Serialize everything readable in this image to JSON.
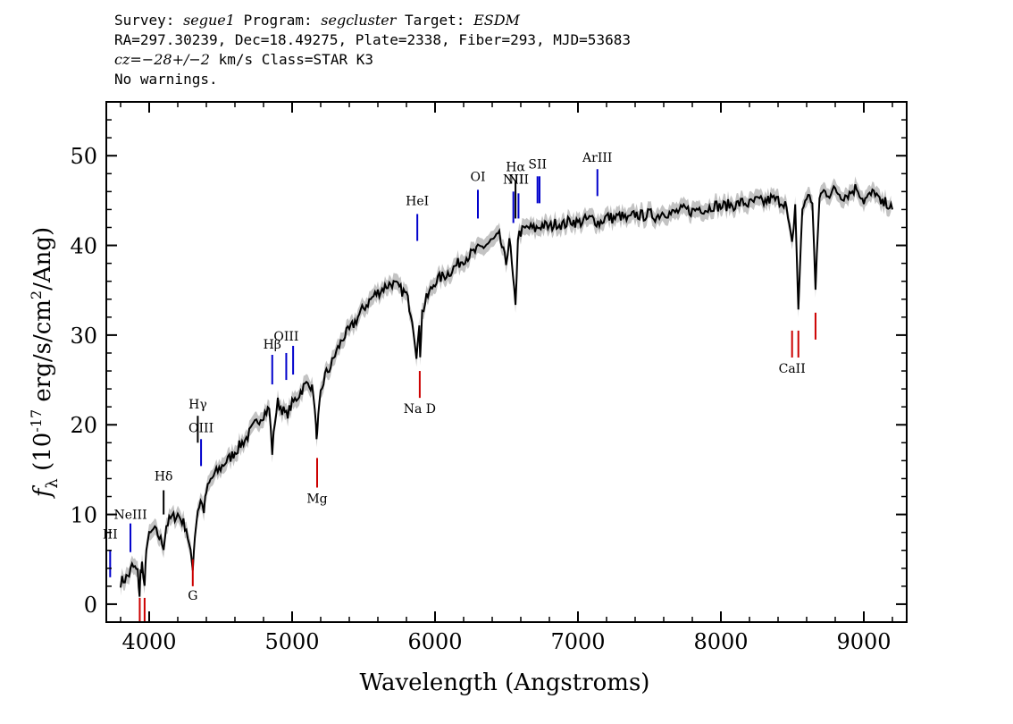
{
  "header": {
    "survey_label": "Survey:",
    "survey": "segue1",
    "program_label": "Program:",
    "program": "segcluster",
    "target_label": "Target:",
    "target": "ESDM",
    "line2": "RA=297.30239, Dec=18.49275, Plate=2338, Fiber=293, MJD=53683",
    "cz_label": "cz=",
    "cz_value": "−28+/−2",
    "cz_unit": " km/s Class=STAR K3",
    "warnings": "No warnings."
  },
  "chart_data": {
    "type": "line",
    "xlabel": "Wavelength (Angstroms)",
    "ylabel": "f_λ (10^-17 erg/s/cm^2/Ang)",
    "xlim": [
      3700,
      9300
    ],
    "ylim": [
      -2,
      56
    ],
    "xticks": [
      4000,
      5000,
      6000,
      7000,
      8000,
      9000
    ],
    "yticks": [
      0,
      10,
      20,
      30,
      40,
      50
    ],
    "xtick_labels": [
      "4000",
      "5000",
      "6000",
      "7000",
      "8000",
      "9000"
    ],
    "ytick_labels": [
      "0",
      "10",
      "20",
      "30",
      "40",
      "50"
    ],
    "colors": {
      "spectrum": "#000000",
      "error": "#b4b4b4",
      "emission": "#0000cc",
      "absorption": "#cc0000",
      "balmer": "#000000"
    },
    "series": [
      {
        "x": [
          3800,
          3830,
          3860,
          3880,
          3900,
          3920,
          3933,
          3940,
          3950,
          3968,
          3980,
          4000,
          4030,
          4060,
          4101,
          4120,
          4150,
          4200,
          4230,
          4260,
          4290,
          4305,
          4320,
          4340,
          4360,
          4383,
          4400,
          4430,
          4460,
          4500,
          4530,
          4560,
          4600,
          4640,
          4680,
          4720,
          4760,
          4800,
          4840,
          4861,
          4880,
          4900,
          4920,
          4960,
          5000,
          5040,
          5080,
          5120,
          5150,
          5167,
          5175,
          5183,
          5200,
          5230,
          5270,
          5300,
          5330,
          5360,
          5400,
          5430,
          5460,
          5500,
          5540,
          5580,
          5620,
          5660,
          5700,
          5750,
          5800,
          5840,
          5870,
          5890,
          5896,
          5910,
          5940,
          5970,
          6000,
          6050,
          6100,
          6150,
          6200,
          6250,
          6300,
          6350,
          6400,
          6450,
          6497,
          6520,
          6563,
          6580,
          6600,
          6650,
          6700,
          6750,
          6800,
          6850,
          6900,
          6950,
          7000,
          7050,
          7100,
          7150,
          7200,
          7250,
          7300,
          7350,
          7400,
          7450,
          7500,
          7550,
          7600,
          7650,
          7700,
          7750,
          7800,
          7850,
          7900,
          7950,
          8000,
          8050,
          8100,
          8150,
          8200,
          8250,
          8300,
          8350,
          8400,
          8450,
          8498,
          8520,
          8542,
          8570,
          8600,
          8640,
          8662,
          8690,
          8720,
          8760,
          8800,
          8850,
          8900,
          8950,
          9000,
          9040,
          9080,
          9120,
          9160,
          9200
        ],
        "y": [
          2.5,
          2.8,
          3.3,
          4.2,
          4.0,
          3.5,
          1.0,
          3.6,
          4.5,
          1.5,
          6.5,
          7.5,
          8.3,
          7.8,
          6.5,
          8.8,
          9.5,
          10.0,
          9.3,
          8.5,
          5.5,
          4.2,
          7.8,
          10.5,
          11.5,
          10.5,
          12.5,
          13.8,
          14.5,
          15.2,
          15.8,
          16.2,
          17.0,
          17.8,
          18.5,
          19.5,
          20.5,
          21.2,
          21.8,
          17.0,
          20.5,
          22.5,
          22.0,
          21.0,
          22.3,
          23.2,
          24.2,
          24.8,
          23.5,
          19.5,
          18.5,
          20.5,
          23.5,
          25.5,
          26.5,
          27.8,
          28.8,
          29.8,
          30.5,
          31.2,
          32.0,
          33.0,
          33.8,
          34.5,
          35.0,
          35.5,
          35.8,
          35.2,
          34.5,
          32.0,
          28.0,
          30.5,
          28.0,
          32.5,
          34.0,
          35.0,
          36.0,
          36.5,
          37.0,
          37.8,
          38.5,
          39.0,
          39.5,
          40.0,
          40.5,
          41.0,
          38.0,
          41.0,
          33.0,
          41.0,
          41.5,
          42.0,
          41.8,
          42.3,
          42.0,
          42.5,
          42.3,
          42.8,
          42.5,
          42.8,
          43.0,
          42.5,
          43.2,
          43.0,
          43.3,
          42.8,
          43.5,
          43.3,
          43.5,
          43.2,
          43.8,
          43.5,
          43.8,
          44.0,
          43.8,
          44.2,
          44.0,
          44.5,
          44.3,
          44.5,
          44.5,
          44.8,
          44.6,
          45.0,
          44.8,
          45.2,
          45.0,
          44.8,
          40.0,
          44.5,
          33.0,
          44.0,
          45.5,
          45.0,
          35.0,
          45.5,
          46.0,
          45.8,
          46.2,
          45.5,
          45.8,
          46.5,
          45.0,
          45.5,
          46.0,
          44.5,
          44.8,
          44.0
        ]
      }
    ],
    "line_markers": [
      {
        "label": "III",
        "x": 3727,
        "y0": 3.0,
        "y1": 6.0,
        "color": "blue",
        "label_y": 7.3
      },
      {
        "label": "NeIII",
        "x": 3869,
        "y0": 5.8,
        "y1": 9.0,
        "color": "blue",
        "label_y": 9.5
      },
      {
        "label": "Hδ",
        "x": 4101,
        "y0": 10.0,
        "y1": 12.7,
        "color": "black",
        "label_y": 13.8
      },
      {
        "label": "G",
        "x": 4305,
        "y0": 2.0,
        "y1": 5.0,
        "color": "red",
        "label_y": 0.5
      },
      {
        "label": "Hγ",
        "x": 4340,
        "y0": 18.0,
        "y1": 21.0,
        "color": "black",
        "label_y": 21.8
      },
      {
        "label": "OIII",
        "x": 4363,
        "y0": 15.4,
        "y1": 18.4,
        "color": "blue",
        "label_y": 19.2
      },
      {
        "label": "Hβ",
        "x": 4861,
        "y0": 24.5,
        "y1": 27.8,
        "color": "blue",
        "label_y": 28.5
      },
      {
        "label": "OIII",
        "x": 4959,
        "y0": 25.0,
        "y1": 28.0,
        "color": "blue",
        "label_y": 29.4
      },
      {
        "label": "",
        "x": 5007,
        "y0": 25.6,
        "y1": 28.8,
        "color": "blue",
        "label_y": 0
      },
      {
        "label": "Mg",
        "x": 5175,
        "y0": 13.0,
        "y1": 16.3,
        "color": "red",
        "label_y": 11.3
      },
      {
        "label": "Na D",
        "x": 5893,
        "y0": 23.0,
        "y1": 26.0,
        "color": "red",
        "label_y": 21.3
      },
      {
        "label": "HeI",
        "x": 5876,
        "y0": 40.5,
        "y1": 43.5,
        "color": "blue",
        "label_y": 44.5
      },
      {
        "label": "OI",
        "x": 6300,
        "y0": 43.0,
        "y1": 46.2,
        "color": "blue",
        "label_y": 47.2
      },
      {
        "label": "NII",
        "x": 6548,
        "y0": 42.5,
        "y1": 46.0,
        "color": "blue",
        "label_y": 46.9
      },
      {
        "label": "Hα",
        "x": 6563,
        "y0": 43.0,
        "y1": 47.2,
        "color": "black",
        "label_y": 48.3
      },
      {
        "label": "NII",
        "x": 6584,
        "y0": 43.0,
        "y1": 45.8,
        "color": "blue",
        "label_y": 46.9
      },
      {
        "label": "SII",
        "x": 6717,
        "y0": 44.7,
        "y1": 47.7,
        "color": "blue",
        "label_y": 48.6
      },
      {
        "label": "",
        "x": 6731,
        "y0": 44.7,
        "y1": 47.7,
        "color": "blue",
        "label_y": 0
      },
      {
        "label": "ArIII",
        "x": 7136,
        "y0": 45.5,
        "y1": 48.5,
        "color": "blue",
        "label_y": 49.3
      },
      {
        "label": "CaII",
        "x": 8498,
        "y0": 27.5,
        "y1": 30.5,
        "color": "red",
        "label_y": 25.8
      },
      {
        "label": "",
        "x": 8542,
        "y0": 27.5,
        "y1": 30.5,
        "color": "red",
        "label_y": 0
      },
      {
        "label": "",
        "x": 8662,
        "y0": 29.5,
        "y1": 32.5,
        "color": "red",
        "label_y": 0
      },
      {
        "label": "",
        "x": 3934,
        "y0": -2.0,
        "y1": 0.7,
        "color": "red",
        "label_y": 0
      },
      {
        "label": "",
        "x": 3968,
        "y0": -2.0,
        "y1": 0.7,
        "color": "red",
        "label_y": 0
      }
    ]
  }
}
